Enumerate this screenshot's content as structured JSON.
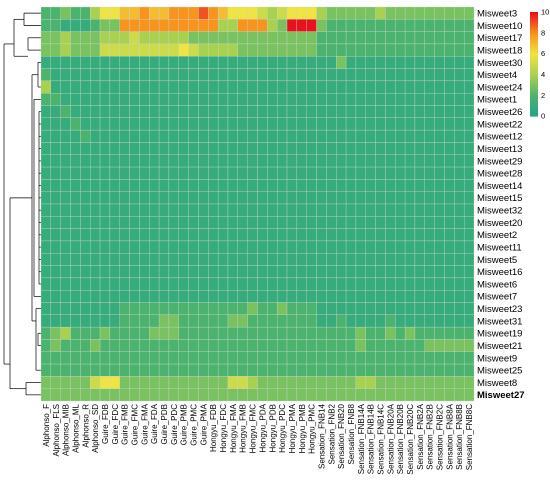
{
  "chart_data": {
    "type": "heatmap",
    "title": "",
    "xlabel": "",
    "ylabel": "",
    "rows": [
      "Misweet3",
      "Misweet10",
      "Misweet17",
      "Misweet18",
      "Misweet30",
      "Misweet4",
      "Misweet24",
      "Misweet1",
      "Misweet26",
      "Misweet22",
      "Misweet12",
      "Misweet13",
      "Misweet29",
      "Misweet28",
      "Misweet14",
      "Misweet15",
      "Misweet32",
      "Misweet20",
      "Misweet2",
      "Misweet11",
      "Misweet5",
      "Misweet16",
      "Misweet6",
      "Misweet7",
      "Misweet23",
      "Misweet31",
      "Misweet19",
      "Misweet21",
      "Misweet9",
      "Misweet25",
      "Misweet8",
      "Misweet27"
    ],
    "columns": [
      "Alphonso_F",
      "Alphonso_FLS",
      "Alphonso_MIB",
      "Alphonso_ML",
      "Alphonso_R",
      "Alphonso_SD",
      "Guire_FDB",
      "Guire_FDC",
      "Guire_FMB",
      "Guire_FMC",
      "Guire_FMA",
      "Guire_FDA",
      "Guire_PDB",
      "Guire_PDC",
      "Guire_PMB",
      "Guire_PMC",
      "Guire_PMA",
      "Hongyu_FDB",
      "Hongyu_FDC",
      "Hongyu_FMA",
      "Hongyu_FMB",
      "Hongyu_FMC",
      "Hongyu_PDA",
      "Hongyu_PDB",
      "Hongyu_PDC",
      "Hongyu_PMA",
      "Hongyu_PMB",
      "Hongyu_PMC",
      "Sensation_FNB14",
      "Sensation_FNB2",
      "Sensation_FNB20",
      "Sensation_FNB8",
      "Sensation_FNB14A",
      "Sensation_FNB14B",
      "Sensation_FNB14C",
      "Sensation_FNB20A",
      "Sensation_FNB20B",
      "Sensation_FNB20C",
      "Sensation_FNB2A",
      "Sensation_FNB2B",
      "Sensation_FNB2C",
      "Sensation_FNB8A",
      "Sensation_FNB8B",
      "Sensation_FNB8C"
    ],
    "values": [
      [
        2,
        2,
        3,
        2,
        2,
        4,
        6,
        6,
        7,
        7,
        8,
        7,
        7,
        8,
        8,
        8,
        9,
        8,
        7,
        6,
        6,
        6,
        5,
        4,
        5,
        6,
        6,
        6,
        4,
        3,
        3,
        3,
        3,
        3,
        4,
        3,
        3,
        3,
        3,
        3,
        3,
        3,
        3,
        3
      ],
      [
        2,
        2,
        1,
        1,
        1,
        2,
        3,
        3,
        8,
        8,
        8,
        8,
        8,
        8,
        8,
        8,
        8,
        8,
        4,
        4,
        8,
        8,
        8,
        4,
        3,
        10,
        10,
        10,
        3,
        2,
        2,
        2,
        2,
        2,
        2,
        2,
        2,
        2,
        2,
        2,
        2,
        2,
        2,
        2
      ],
      [
        3,
        3,
        4,
        3,
        3,
        3,
        4,
        4,
        4,
        5,
        4,
        4,
        4,
        4,
        4,
        3,
        3,
        3,
        3,
        3,
        3,
        3,
        3,
        3,
        3,
        3,
        3,
        3,
        2,
        2,
        2,
        2,
        2,
        2,
        2,
        2,
        2,
        2,
        2,
        2,
        2,
        2,
        2,
        2
      ],
      [
        3,
        3,
        4,
        3,
        3,
        3,
        5,
        5,
        5,
        5,
        5,
        5,
        5,
        5,
        6,
        5,
        4,
        4,
        4,
        4,
        3,
        3,
        3,
        3,
        3,
        3,
        3,
        3,
        2,
        2,
        2,
        2,
        2,
        2,
        2,
        2,
        2,
        2,
        2,
        2,
        2,
        2,
        2,
        2
      ],
      [
        1,
        1,
        1,
        1,
        1,
        1,
        1,
        1,
        1,
        1,
        1,
        1,
        1,
        1,
        1,
        1,
        1,
        1,
        1,
        1,
        1,
        1,
        1,
        1,
        1,
        1,
        1,
        1,
        1,
        1,
        3,
        1,
        1,
        1,
        1,
        1,
        1,
        1,
        1,
        1,
        1,
        1,
        1,
        1
      ],
      [
        2,
        1,
        1,
        1,
        1,
        1,
        1,
        1,
        1,
        1,
        1,
        1,
        1,
        1,
        1,
        1,
        1,
        1,
        1,
        1,
        1,
        1,
        1,
        1,
        1,
        1,
        1,
        1,
        1,
        1,
        1,
        1,
        1,
        1,
        1,
        1,
        1,
        1,
        1,
        1,
        1,
        1,
        1,
        1
      ],
      [
        4,
        1,
        1,
        1,
        1,
        1,
        1,
        1,
        1,
        1,
        1,
        1,
        1,
        1,
        1,
        1,
        1,
        1,
        1,
        1,
        1,
        1,
        1,
        1,
        1,
        1,
        1,
        1,
        1,
        1,
        1,
        1,
        1,
        1,
        1,
        1,
        1,
        1,
        1,
        1,
        1,
        1,
        1,
        1
      ],
      [
        2,
        2,
        1,
        1,
        1,
        1,
        1,
        1,
        1,
        1,
        1,
        1,
        1,
        1,
        1,
        1,
        1,
        1,
        1,
        1,
        1,
        1,
        1,
        1,
        1,
        1,
        1,
        1,
        1,
        1,
        1,
        1,
        1,
        1,
        1,
        1,
        1,
        1,
        1,
        1,
        1,
        1,
        1,
        1
      ],
      [
        1,
        1,
        2,
        1,
        1,
        1,
        1,
        1,
        1,
        1,
        1,
        1,
        1,
        1,
        1,
        1,
        1,
        1,
        1,
        1,
        1,
        1,
        1,
        1,
        1,
        1,
        1,
        1,
        1,
        1,
        1,
        1,
        1,
        1,
        1,
        1,
        1,
        1,
        1,
        1,
        1,
        1,
        1,
        1
      ],
      [
        1,
        1,
        1,
        2,
        1,
        1,
        1,
        1,
        1,
        1,
        1,
        1,
        1,
        1,
        1,
        1,
        1,
        1,
        1,
        1,
        1,
        1,
        1,
        1,
        1,
        1,
        1,
        1,
        1,
        1,
        1,
        1,
        1,
        1,
        1,
        1,
        1,
        1,
        1,
        1,
        1,
        1,
        1,
        1
      ],
      [
        1,
        1,
        1,
        1,
        2,
        1,
        1,
        1,
        1,
        1,
        1,
        1,
        1,
        1,
        1,
        1,
        1,
        1,
        1,
        1,
        1,
        1,
        1,
        1,
        1,
        1,
        1,
        1,
        1,
        1,
        1,
        1,
        1,
        1,
        1,
        1,
        1,
        1,
        1,
        1,
        1,
        1,
        1,
        1
      ],
      [
        1,
        1,
        1,
        1,
        1,
        1,
        1,
        1,
        1,
        1,
        1,
        1,
        1,
        1,
        1,
        1,
        1,
        1,
        1,
        1,
        1,
        1,
        1,
        1,
        1,
        1,
        1,
        1,
        1,
        1,
        1,
        1,
        1,
        1,
        1,
        1,
        1,
        1,
        1,
        1,
        1,
        1,
        1,
        1
      ],
      [
        1,
        1,
        1,
        1,
        1,
        1,
        1,
        1,
        1,
        1,
        1,
        1,
        1,
        1,
        1,
        1,
        1,
        1,
        1,
        1,
        1,
        1,
        1,
        1,
        1,
        1,
        1,
        1,
        1,
        1,
        1,
        1,
        1,
        1,
        1,
        1,
        1,
        1,
        1,
        1,
        1,
        1,
        1,
        1
      ],
      [
        1,
        1,
        1,
        1,
        1,
        1,
        1,
        1,
        1,
        1,
        1,
        1,
        1,
        1,
        1,
        1,
        1,
        1,
        1,
        1,
        1,
        1,
        1,
        1,
        1,
        1,
        1,
        1,
        1,
        1,
        1,
        1,
        1,
        1,
        1,
        1,
        1,
        1,
        1,
        1,
        1,
        1,
        1,
        1
      ],
      [
        1,
        1,
        1,
        1,
        1,
        1,
        1,
        1,
        1,
        1,
        1,
        1,
        1,
        1,
        1,
        1,
        1,
        1,
        1,
        1,
        1,
        1,
        1,
        1,
        1,
        1,
        1,
        1,
        1,
        1,
        1,
        1,
        1,
        1,
        1,
        1,
        1,
        1,
        1,
        1,
        1,
        1,
        1,
        1
      ],
      [
        1,
        1,
        1,
        1,
        1,
        1,
        1,
        1,
        1,
        1,
        1,
        1,
        1,
        1,
        1,
        1,
        1,
        1,
        1,
        1,
        1,
        1,
        1,
        1,
        1,
        1,
        1,
        1,
        1,
        1,
        1,
        1,
        1,
        1,
        1,
        1,
        1,
        1,
        1,
        1,
        1,
        1,
        1,
        1
      ],
      [
        1,
        1,
        1,
        1,
        1,
        1,
        1,
        1,
        1,
        1,
        1,
        1,
        1,
        1,
        1,
        1,
        1,
        1,
        1,
        1,
        1,
        1,
        1,
        1,
        1,
        1,
        1,
        1,
        1,
        1,
        1,
        1,
        1,
        1,
        1,
        1,
        1,
        1,
        1,
        1,
        1,
        1,
        1,
        1
      ],
      [
        1,
        1,
        1,
        1,
        1,
        1,
        1,
        1,
        1,
        1,
        1,
        1,
        1,
        1,
        1,
        1,
        1,
        1,
        1,
        1,
        1,
        1,
        1,
        1,
        1,
        1,
        1,
        1,
        1,
        1,
        1,
        1,
        1,
        1,
        1,
        1,
        1,
        1,
        1,
        1,
        1,
        1,
        1,
        1
      ],
      [
        1,
        1,
        1,
        1,
        1,
        1,
        1,
        1,
        1,
        1,
        1,
        1,
        1,
        1,
        1,
        1,
        1,
        1,
        1,
        1,
        1,
        1,
        1,
        1,
        1,
        1,
        1,
        1,
        1,
        1,
        1,
        1,
        1,
        1,
        1,
        1,
        1,
        1,
        1,
        1,
        1,
        1,
        1,
        1
      ],
      [
        1,
        1,
        1,
        1,
        1,
        1,
        1,
        1,
        1,
        1,
        1,
        1,
        1,
        1,
        1,
        1,
        1,
        1,
        1,
        1,
        1,
        1,
        1,
        1,
        1,
        1,
        1,
        1,
        1,
        1,
        1,
        1,
        1,
        1,
        1,
        1,
        1,
        1,
        1,
        1,
        1,
        1,
        1,
        1
      ],
      [
        1,
        1,
        1,
        1,
        1,
        1,
        1,
        1,
        1,
        1,
        1,
        1,
        1,
        1,
        1,
        1,
        1,
        1,
        1,
        1,
        1,
        1,
        1,
        1,
        1,
        1,
        1,
        1,
        1,
        1,
        1,
        1,
        1,
        1,
        1,
        1,
        1,
        1,
        1,
        1,
        1,
        1,
        1,
        1
      ],
      [
        1,
        1,
        1,
        1,
        1,
        1,
        1,
        1,
        1,
        1,
        1,
        1,
        1,
        1,
        1,
        1,
        1,
        1,
        1,
        1,
        1,
        1,
        1,
        1,
        1,
        1,
        1,
        1,
        1,
        1,
        1,
        1,
        1,
        1,
        1,
        1,
        1,
        1,
        1,
        1,
        1,
        1,
        1,
        1
      ],
      [
        1,
        1,
        1,
        1,
        1,
        1,
        1,
        1,
        1,
        1,
        1,
        1,
        1,
        1,
        1,
        1,
        1,
        1,
        1,
        1,
        1,
        1,
        1,
        1,
        1,
        1,
        1,
        1,
        1,
        1,
        1,
        1,
        1,
        1,
        1,
        1,
        1,
        1,
        1,
        1,
        1,
        1,
        1,
        1
      ],
      [
        1,
        1,
        1,
        1,
        1,
        1,
        1,
        1,
        1,
        1,
        1,
        1,
        1,
        1,
        1,
        1,
        1,
        1,
        1,
        1,
        1,
        1,
        1,
        1,
        1,
        1,
        1,
        1,
        1,
        1,
        1,
        1,
        1,
        1,
        1,
        1,
        1,
        1,
        1,
        1,
        1,
        1,
        1,
        1
      ],
      [
        1,
        1,
        1,
        1,
        1,
        1,
        1,
        1,
        2,
        2,
        2,
        2,
        2,
        2,
        2,
        2,
        2,
        2,
        2,
        2,
        2,
        3,
        2,
        2,
        3,
        2,
        2,
        2,
        1,
        1,
        1,
        1,
        1,
        1,
        1,
        1,
        1,
        1,
        1,
        1,
        1,
        1,
        1,
        1
      ],
      [
        1,
        1,
        1,
        1,
        1,
        1,
        1,
        1,
        2,
        2,
        2,
        2,
        3,
        3,
        2,
        2,
        2,
        2,
        2,
        3,
        3,
        2,
        2,
        2,
        2,
        2,
        2,
        2,
        1,
        1,
        2,
        1,
        1,
        1,
        1,
        2,
        1,
        1,
        1,
        1,
        1,
        1,
        1,
        1
      ],
      [
        2,
        3,
        4,
        2,
        2,
        2,
        3,
        2,
        2,
        2,
        2,
        3,
        3,
        3,
        2,
        2,
        2,
        2,
        2,
        2,
        2,
        2,
        2,
        2,
        2,
        2,
        2,
        2,
        2,
        2,
        2,
        2,
        3,
        2,
        2,
        3,
        2,
        3,
        2,
        2,
        2,
        2,
        2,
        2
      ],
      [
        2,
        3,
        2,
        2,
        2,
        3,
        2,
        2,
        2,
        2,
        2,
        2,
        2,
        2,
        2,
        2,
        2,
        2,
        2,
        2,
        2,
        2,
        2,
        2,
        2,
        2,
        2,
        2,
        2,
        2,
        2,
        2,
        3,
        2,
        2,
        2,
        2,
        2,
        2,
        3,
        3,
        3,
        3,
        3
      ],
      [
        2,
        2,
        2,
        2,
        2,
        2,
        2,
        2,
        2,
        2,
        2,
        2,
        2,
        2,
        2,
        2,
        2,
        2,
        2,
        2,
        2,
        2,
        2,
        2,
        2,
        2,
        2,
        2,
        2,
        2,
        2,
        2,
        2,
        2,
        2,
        2,
        2,
        2,
        2,
        2,
        2,
        2,
        2,
        2
      ],
      [
        2,
        2,
        2,
        2,
        2,
        2,
        2,
        2,
        2,
        2,
        2,
        2,
        2,
        2,
        2,
        2,
        2,
        2,
        2,
        2,
        2,
        2,
        2,
        2,
        2,
        2,
        2,
        2,
        2,
        2,
        2,
        2,
        2,
        2,
        2,
        2,
        2,
        2,
        2,
        2,
        2,
        2,
        2,
        2
      ],
      [
        3,
        3,
        3,
        3,
        3,
        5,
        6,
        6,
        3,
        3,
        3,
        3,
        3,
        3,
        3,
        3,
        3,
        3,
        3,
        5,
        5,
        4,
        3,
        3,
        3,
        3,
        3,
        3,
        3,
        3,
        3,
        3,
        4,
        4,
        3,
        3,
        3,
        3,
        3,
        3,
        3,
        3,
        3,
        3
      ],
      [
        3,
        3,
        3,
        3,
        3,
        3,
        3,
        3,
        3,
        3,
        3,
        3,
        3,
        3,
        3,
        3,
        3,
        3,
        3,
        3,
        3,
        3,
        3,
        3,
        3,
        3,
        3,
        3,
        3,
        3,
        3,
        3,
        3,
        3,
        3,
        3,
        3,
        3,
        3,
        3,
        3,
        3,
        3,
        3
      ]
    ],
    "vmin": 0,
    "vmax": 10,
    "legend": {
      "position": "right",
      "ticks": [
        0,
        2,
        4,
        6,
        8,
        10
      ]
    },
    "colorscale": [
      "#21a38a",
      "#4bb36e",
      "#a7d14f",
      "#f0e442",
      "#f7941d",
      "#e8121e"
    ],
    "bold_rows": [
      "Misweet27"
    ]
  }
}
